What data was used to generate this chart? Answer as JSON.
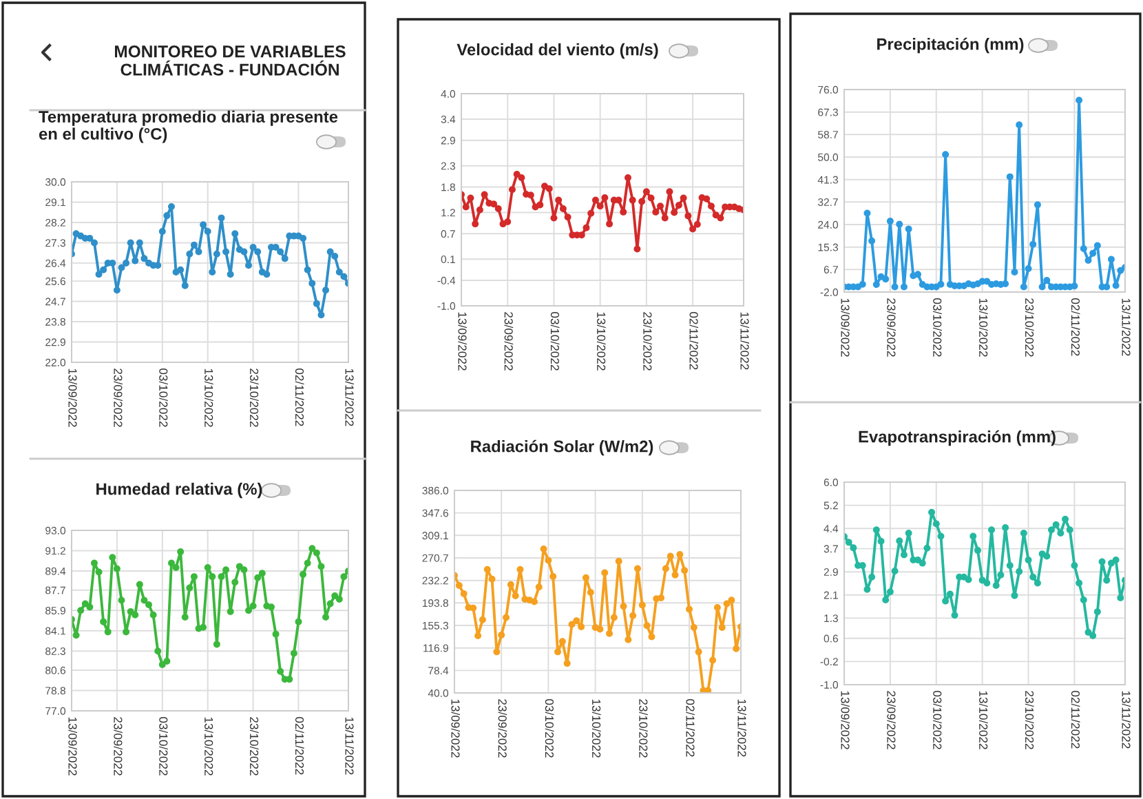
{
  "chart_data": [
    {
      "type": "line",
      "title": "Temperatura promedio diaria presente\nen el cultivo (°C)",
      "annotations": [
        "MONITOREO DE VARIABLES\nCLIMÁTICAS - FUNDACIÓN"
      ],
      "grid": true,
      "marker": "circle",
      "line_style": "solid",
      "x": [
        "2022-09-13",
        "2022-09-14",
        "2022-09-15",
        "2022-09-16",
        "2022-09-17",
        "2022-09-18",
        "2022-09-19",
        "2022-09-20",
        "2022-09-21",
        "2022-09-22",
        "2022-09-23",
        "2022-09-24",
        "2022-09-25",
        "2022-09-26",
        "2022-09-27",
        "2022-09-28",
        "2022-09-29",
        "2022-09-30",
        "2022-10-01",
        "2022-10-02",
        "2022-10-03",
        "2022-10-04",
        "2022-10-05",
        "2022-10-06",
        "2022-10-07",
        "2022-10-08",
        "2022-10-09",
        "2022-10-10",
        "2022-10-11",
        "2022-10-12",
        "2022-10-13",
        "2022-10-14",
        "2022-10-15",
        "2022-10-16",
        "2022-10-17",
        "2022-10-18",
        "2022-10-19",
        "2022-10-20",
        "2022-10-21",
        "2022-10-22",
        "2022-10-23",
        "2022-10-24",
        "2022-10-25",
        "2022-10-26",
        "2022-10-27",
        "2022-10-28",
        "2022-10-29",
        "2022-10-30",
        "2022-10-31",
        "2022-11-01",
        "2022-11-02",
        "2022-11-03",
        "2022-11-04",
        "2022-11-05",
        "2022-11-06",
        "2022-11-07",
        "2022-11-08",
        "2022-11-09",
        "2022-11-10",
        "2022-11-11",
        "2022-11-12",
        "2022-11-13"
      ],
      "series": [
        {
          "color": "#2f8fc9",
          "values": [
            26.8,
            27.7,
            27.6,
            27.5,
            27.5,
            27.3,
            25.9,
            26.1,
            26.4,
            26.4,
            25.2,
            26.2,
            26.4,
            27.3,
            26.5,
            27.3,
            26.6,
            26.4,
            26.3,
            26.3,
            27.8,
            28.5,
            28.9,
            26.0,
            26.1,
            25.4,
            26.8,
            27.2,
            26.9,
            28.1,
            27.8,
            26.0,
            26.8,
            28.4,
            26.9,
            25.9,
            27.7,
            27.0,
            26.9,
            26.3,
            27.1,
            26.9,
            26.0,
            25.9,
            27.1,
            27.1,
            26.9,
            26.6,
            27.6,
            27.6,
            27.6,
            27.5,
            26.1,
            25.5,
            24.6,
            24.1,
            25.2,
            26.9,
            26.7,
            26.0,
            25.8,
            25.5
          ]
        }
      ],
      "xlim": [
        "2022-09-13",
        "2022-11-13"
      ],
      "xticks": [
        {
          "value": "2022-09-13",
          "label": "13/09/2022"
        },
        {
          "value": "2022-09-23",
          "label": "23/09/2022"
        },
        {
          "value": "2022-10-03",
          "label": "03/10/2022"
        },
        {
          "value": "2022-10-13",
          "label": "13/10/2022"
        },
        {
          "value": "2022-10-23",
          "label": "23/10/2022"
        },
        {
          "value": "2022-11-02",
          "label": "02/11/2022"
        },
        {
          "value": "2022-11-13",
          "label": "13/11/2022"
        }
      ],
      "ylim": [
        22,
        30
      ],
      "yticks": [
        {
          "value": 22,
          "label": "22.0"
        },
        {
          "value": 22.9,
          "label": "22.9"
        },
        {
          "value": 23.8,
          "label": "23.8"
        },
        {
          "value": 24.7,
          "label": "24.7"
        },
        {
          "value": 25.6,
          "label": "25.6"
        },
        {
          "value": 26.4,
          "label": "26.4"
        },
        {
          "value": 27.3,
          "label": "27.3"
        },
        {
          "value": 28.2,
          "label": "28.2"
        },
        {
          "value": 29.1,
          "label": "29.1"
        },
        {
          "value": 30,
          "label": "30.0"
        }
      ]
    },
    {
      "type": "line",
      "title": "Velocidad del viento (m/s)",
      "grid": true,
      "marker": "circle",
      "line_style": "solid",
      "x": [
        "2022-09-13",
        "2022-09-14",
        "2022-09-15",
        "2022-09-16",
        "2022-09-17",
        "2022-09-18",
        "2022-09-19",
        "2022-09-20",
        "2022-09-21",
        "2022-09-22",
        "2022-09-23",
        "2022-09-24",
        "2022-09-25",
        "2022-09-26",
        "2022-09-27",
        "2022-09-28",
        "2022-09-29",
        "2022-09-30",
        "2022-10-01",
        "2022-10-02",
        "2022-10-03",
        "2022-10-04",
        "2022-10-05",
        "2022-10-06",
        "2022-10-07",
        "2022-10-08",
        "2022-10-09",
        "2022-10-10",
        "2022-10-11",
        "2022-10-12",
        "2022-10-13",
        "2022-10-14",
        "2022-10-15",
        "2022-10-16",
        "2022-10-17",
        "2022-10-18",
        "2022-10-19",
        "2022-10-20",
        "2022-10-21",
        "2022-10-22",
        "2022-10-23",
        "2022-10-24",
        "2022-10-25",
        "2022-10-26",
        "2022-10-27",
        "2022-10-28",
        "2022-10-29",
        "2022-10-30",
        "2022-10-31",
        "2022-11-01",
        "2022-11-02",
        "2022-11-03",
        "2022-11-04",
        "2022-11-05",
        "2022-11-06",
        "2022-11-07",
        "2022-11-08",
        "2022-11-09",
        "2022-11-10",
        "2022-11-11",
        "2022-11-12",
        "2022-11-13"
      ],
      "series": [
        {
          "color": "#d42a2a",
          "values": [
            1.62,
            1.33,
            1.54,
            0.93,
            1.26,
            1.62,
            1.42,
            1.4,
            1.29,
            0.93,
            0.98,
            1.74,
            2.1,
            2.02,
            1.63,
            1.61,
            1.33,
            1.38,
            1.82,
            1.76,
            1.07,
            1.49,
            1.29,
            1.09,
            0.67,
            0.67,
            0.67,
            0.84,
            1.18,
            1.49,
            1.35,
            1.55,
            0.93,
            1.49,
            1.49,
            1.21,
            2.02,
            1.49,
            0.34,
            1.46,
            1.69,
            1.54,
            1.21,
            1.35,
            1.07,
            1.69,
            1.2,
            1.37,
            1.54,
            1.12,
            0.81,
            0.92,
            1.55,
            1.52,
            1.35,
            1.14,
            1.07,
            1.33,
            1.33,
            1.33,
            1.29,
            1.26
          ]
        }
      ],
      "xlim": [
        "2022-09-13",
        "2022-11-13"
      ],
      "xticks": [
        {
          "value": "2022-09-13",
          "label": "13/09/2022"
        },
        {
          "value": "2022-09-23",
          "label": "23/09/2022"
        },
        {
          "value": "2022-10-03",
          "label": "03/10/2022"
        },
        {
          "value": "2022-10-13",
          "label": "13/10/2022"
        },
        {
          "value": "2022-10-23",
          "label": "23/10/2022"
        },
        {
          "value": "2022-11-02",
          "label": "02/11/2022"
        },
        {
          "value": "2022-11-13",
          "label": "13/11/2022"
        }
      ],
      "ylim": [
        -1,
        4
      ],
      "yticks": [
        {
          "value": -1,
          "label": "-1.0"
        },
        {
          "value": -0.4,
          "label": "-0.4"
        },
        {
          "value": 0.1,
          "label": "0.1"
        },
        {
          "value": 0.7,
          "label": "0.7"
        },
        {
          "value": 1.2,
          "label": "1.2"
        },
        {
          "value": 1.8,
          "label": "1.8"
        },
        {
          "value": 2.3,
          "label": "2.3"
        },
        {
          "value": 2.9,
          "label": "2.9"
        },
        {
          "value": 3.4,
          "label": "3.4"
        },
        {
          "value": 4,
          "label": "4.0"
        }
      ]
    },
    {
      "type": "line",
      "title": "Precipitación (mm)",
      "grid": true,
      "marker": "circle",
      "line_style": "solid",
      "x": [
        "2022-09-13",
        "2022-09-14",
        "2022-09-15",
        "2022-09-16",
        "2022-09-17",
        "2022-09-18",
        "2022-09-19",
        "2022-09-20",
        "2022-09-21",
        "2022-09-22",
        "2022-09-23",
        "2022-09-24",
        "2022-09-25",
        "2022-09-26",
        "2022-09-27",
        "2022-09-28",
        "2022-09-29",
        "2022-09-30",
        "2022-10-01",
        "2022-10-02",
        "2022-10-03",
        "2022-10-04",
        "2022-10-05",
        "2022-10-06",
        "2022-10-07",
        "2022-10-08",
        "2022-10-09",
        "2022-10-10",
        "2022-10-11",
        "2022-10-12",
        "2022-10-13",
        "2022-10-14",
        "2022-10-15",
        "2022-10-16",
        "2022-10-17",
        "2022-10-18",
        "2022-10-19",
        "2022-10-20",
        "2022-10-21",
        "2022-10-22",
        "2022-10-23",
        "2022-10-24",
        "2022-10-25",
        "2022-10-26",
        "2022-10-27",
        "2022-10-28",
        "2022-10-29",
        "2022-10-30",
        "2022-10-31",
        "2022-11-01",
        "2022-11-02",
        "2022-11-03",
        "2022-11-04",
        "2022-11-05",
        "2022-11-06",
        "2022-11-07",
        "2022-11-08",
        "2022-11-09",
        "2022-11-10",
        "2022-11-11",
        "2022-11-12",
        "2022-11-13"
      ],
      "series": [
        {
          "color": "#2d9be0",
          "values": [
            0,
            0,
            0,
            0,
            1,
            28.4,
            17.7,
            0.9,
            3.9,
            3.0,
            25.3,
            0,
            24.1,
            0,
            22.3,
            4.3,
            4.8,
            0.9,
            0,
            0,
            0,
            1,
            51,
            0.9,
            0.4,
            0.4,
            0.4,
            1.2,
            0.7,
            1.2,
            2.1,
            2.1,
            0.9,
            1.2,
            0.9,
            1.2,
            42.4,
            5.7,
            62.4,
            0,
            7,
            16.4,
            31.6,
            0,
            2.5,
            0,
            0,
            0,
            0,
            0,
            0.3,
            71.9,
            14.7,
            10.2,
            12.9,
            15.9,
            0,
            0,
            10.6,
            0.5,
            6.3,
            7.5
          ]
        }
      ],
      "xlim": [
        "2022-09-13",
        "2022-11-13"
      ],
      "xticks": [
        {
          "value": "2022-09-13",
          "label": "13/09/2022"
        },
        {
          "value": "2022-09-23",
          "label": "23/09/2022"
        },
        {
          "value": "2022-10-03",
          "label": "03/10/2022"
        },
        {
          "value": "2022-10-13",
          "label": "13/10/2022"
        },
        {
          "value": "2022-10-23",
          "label": "23/10/2022"
        },
        {
          "value": "2022-11-02",
          "label": "02/11/2022"
        },
        {
          "value": "2022-11-13",
          "label": "13/11/2022"
        }
      ],
      "ylim": [
        -2,
        76
      ],
      "yticks": [
        {
          "value": -2,
          "label": "-2.0"
        },
        {
          "value": 6.7,
          "label": "6.7"
        },
        {
          "value": 15.3,
          "label": "15.3"
        },
        {
          "value": 24,
          "label": "24.0"
        },
        {
          "value": 32.7,
          "label": "32.7"
        },
        {
          "value": 41.3,
          "label": "41.3"
        },
        {
          "value": 50,
          "label": "50.0"
        },
        {
          "value": 58.7,
          "label": "58.7"
        },
        {
          "value": 67.3,
          "label": "67.3"
        },
        {
          "value": 76,
          "label": "76.0"
        }
      ]
    },
    {
      "type": "line",
      "title": "Humedad relativa (%)",
      "grid": true,
      "marker": "circle",
      "line_style": "solid",
      "x": [
        "2022-09-13",
        "2022-09-14",
        "2022-09-15",
        "2022-09-16",
        "2022-09-17",
        "2022-09-18",
        "2022-09-19",
        "2022-09-20",
        "2022-09-21",
        "2022-09-22",
        "2022-09-23",
        "2022-09-24",
        "2022-09-25",
        "2022-09-26",
        "2022-09-27",
        "2022-09-28",
        "2022-09-29",
        "2022-09-30",
        "2022-10-01",
        "2022-10-02",
        "2022-10-03",
        "2022-10-04",
        "2022-10-05",
        "2022-10-06",
        "2022-10-07",
        "2022-10-08",
        "2022-10-09",
        "2022-10-10",
        "2022-10-11",
        "2022-10-12",
        "2022-10-13",
        "2022-10-14",
        "2022-10-15",
        "2022-10-16",
        "2022-10-17",
        "2022-10-18",
        "2022-10-19",
        "2022-10-20",
        "2022-10-21",
        "2022-10-22",
        "2022-10-23",
        "2022-10-24",
        "2022-10-25",
        "2022-10-26",
        "2022-10-27",
        "2022-10-28",
        "2022-10-29",
        "2022-10-30",
        "2022-10-31",
        "2022-11-01",
        "2022-11-02",
        "2022-11-03",
        "2022-11-04",
        "2022-11-05",
        "2022-11-06",
        "2022-11-07",
        "2022-11-08",
        "2022-11-09",
        "2022-11-10",
        "2022-11-11",
        "2022-11-12",
        "2022-11-13"
      ],
      "series": [
        {
          "color": "#3cb83c",
          "values": [
            85.1,
            83.7,
            85.9,
            86.5,
            86.2,
            90.1,
            89.3,
            84.9,
            84.0,
            90.6,
            89.6,
            86.8,
            84.0,
            85.8,
            85.5,
            88.2,
            86.8,
            86.4,
            85.5,
            82.3,
            81.1,
            81.4,
            90.1,
            89.7,
            91.1,
            85.3,
            87.9,
            88.9,
            84.3,
            84.4,
            89.7,
            88.9,
            82.9,
            88.9,
            89.5,
            85.8,
            88.4,
            89.8,
            89.5,
            85.9,
            86.3,
            88.8,
            89.2,
            86.3,
            86.2,
            83.8,
            80.5,
            79.8,
            79.8,
            82.1,
            84.9,
            89.1,
            90.1,
            91.4,
            91.0,
            89.8,
            85.3,
            86.5,
            87.2,
            86.9,
            88.9,
            89.4
          ]
        }
      ],
      "xlim": [
        "2022-09-13",
        "2022-11-13"
      ],
      "xticks": [
        {
          "value": "2022-09-13",
          "label": "13/09/2022"
        },
        {
          "value": "2022-09-23",
          "label": "23/09/2022"
        },
        {
          "value": "2022-10-03",
          "label": "03/10/2022"
        },
        {
          "value": "2022-10-13",
          "label": "13/10/2022"
        },
        {
          "value": "2022-10-23",
          "label": "23/10/2022"
        },
        {
          "value": "2022-11-02",
          "label": "02/11/2022"
        },
        {
          "value": "2022-11-13",
          "label": "13/11/2022"
        }
      ],
      "ylim": [
        77,
        93
      ],
      "yticks": [
        {
          "value": 77,
          "label": "77.0"
        },
        {
          "value": 78.8,
          "label": "78.8"
        },
        {
          "value": 80.6,
          "label": "80.6"
        },
        {
          "value": 82.3,
          "label": "82.3"
        },
        {
          "value": 84.1,
          "label": "84.1"
        },
        {
          "value": 85.9,
          "label": "85.9"
        },
        {
          "value": 87.7,
          "label": "87.7"
        },
        {
          "value": 89.4,
          "label": "89.4"
        },
        {
          "value": 91.2,
          "label": "91.2"
        },
        {
          "value": 93,
          "label": "93.0"
        }
      ]
    },
    {
      "type": "line",
      "title": "Radiación Solar (W/m2)",
      "grid": true,
      "marker": "circle",
      "line_style": "solid",
      "x": [
        "2022-09-13",
        "2022-09-14",
        "2022-09-15",
        "2022-09-16",
        "2022-09-17",
        "2022-09-18",
        "2022-09-19",
        "2022-09-20",
        "2022-09-21",
        "2022-09-22",
        "2022-09-23",
        "2022-09-24",
        "2022-09-25",
        "2022-09-26",
        "2022-09-27",
        "2022-09-28",
        "2022-09-29",
        "2022-09-30",
        "2022-10-01",
        "2022-10-02",
        "2022-10-03",
        "2022-10-04",
        "2022-10-05",
        "2022-10-06",
        "2022-10-07",
        "2022-10-08",
        "2022-10-09",
        "2022-10-10",
        "2022-10-11",
        "2022-10-12",
        "2022-10-13",
        "2022-10-14",
        "2022-10-15",
        "2022-10-16",
        "2022-10-17",
        "2022-10-18",
        "2022-10-19",
        "2022-10-20",
        "2022-10-21",
        "2022-10-22",
        "2022-10-23",
        "2022-10-24",
        "2022-10-25",
        "2022-10-26",
        "2022-10-27",
        "2022-10-28",
        "2022-10-29",
        "2022-10-30",
        "2022-10-31",
        "2022-11-01",
        "2022-11-02",
        "2022-11-03",
        "2022-11-04",
        "2022-11-05",
        "2022-11-06",
        "2022-11-07",
        "2022-11-08",
        "2022-11-09",
        "2022-11-10",
        "2022-11-11",
        "2022-11-12",
        "2022-11-13"
      ],
      "series": [
        {
          "color": "#f5a020",
          "values": [
            240.7,
            223.5,
            209.4,
            186,
            185,
            137.6,
            165,
            251,
            234.4,
            110.2,
            139,
            168.8,
            225,
            206,
            251,
            200,
            198.5,
            196,
            221,
            286,
            266.5,
            239,
            110.2,
            128,
            90.5,
            157,
            163.4,
            153,
            236.8,
            211.8,
            151.7,
            149,
            245.4,
            141.4,
            168.8,
            265,
            188,
            131,
            172,
            252.4,
            190,
            155,
            136,
            201,
            202.4,
            252.4,
            273.5,
            241.5,
            276.6,
            249.3,
            183,
            151.7,
            110.2,
            44,
            44,
            96,
            186,
            151.7,
            192.3,
            198.5,
            115.6,
            153
          ]
        }
      ],
      "xlim": [
        "2022-09-13",
        "2022-11-13"
      ],
      "xticks": [
        {
          "value": "2022-09-13",
          "label": "13/09/2022"
        },
        {
          "value": "2022-09-23",
          "label": "23/09/2022"
        },
        {
          "value": "2022-10-03",
          "label": "03/10/2022"
        },
        {
          "value": "2022-10-13",
          "label": "13/10/2022"
        },
        {
          "value": "2022-10-23",
          "label": "23/10/2022"
        },
        {
          "value": "2022-11-02",
          "label": "02/11/2022"
        },
        {
          "value": "2022-11-13",
          "label": "13/11/2022"
        }
      ],
      "ylim": [
        40,
        386
      ],
      "yticks": [
        {
          "value": 40,
          "label": "40.0"
        },
        {
          "value": 78.4,
          "label": "78.4"
        },
        {
          "value": 116.9,
          "label": "116.9"
        },
        {
          "value": 155.3,
          "label": "155.3"
        },
        {
          "value": 193.8,
          "label": "193.8"
        },
        {
          "value": 232.2,
          "label": "232.2"
        },
        {
          "value": 270.7,
          "label": "270.7"
        },
        {
          "value": 309.1,
          "label": "309.1"
        },
        {
          "value": 347.6,
          "label": "347.6"
        },
        {
          "value": 386,
          "label": "386.0"
        }
      ]
    },
    {
      "type": "line",
      "title": "Evapotranspiración (mm)",
      "grid": true,
      "marker": "circle",
      "line_style": "solid",
      "x": [
        "2022-09-13",
        "2022-09-14",
        "2022-09-15",
        "2022-09-16",
        "2022-09-17",
        "2022-09-18",
        "2022-09-19",
        "2022-09-20",
        "2022-09-21",
        "2022-09-22",
        "2022-09-23",
        "2022-09-24",
        "2022-09-25",
        "2022-09-26",
        "2022-09-27",
        "2022-09-28",
        "2022-09-29",
        "2022-09-30",
        "2022-10-01",
        "2022-10-02",
        "2022-10-03",
        "2022-10-04",
        "2022-10-05",
        "2022-10-06",
        "2022-10-07",
        "2022-10-08",
        "2022-10-09",
        "2022-10-10",
        "2022-10-11",
        "2022-10-12",
        "2022-10-13",
        "2022-10-14",
        "2022-10-15",
        "2022-10-16",
        "2022-10-17",
        "2022-10-18",
        "2022-10-19",
        "2022-10-20",
        "2022-10-21",
        "2022-10-22",
        "2022-10-23",
        "2022-10-24",
        "2022-10-25",
        "2022-10-26",
        "2022-10-27",
        "2022-10-28",
        "2022-10-29",
        "2022-10-30",
        "2022-10-31",
        "2022-11-01",
        "2022-11-02",
        "2022-11-03",
        "2022-11-04",
        "2022-11-05",
        "2022-11-06",
        "2022-11-07",
        "2022-11-08",
        "2022-11-09",
        "2022-11-10",
        "2022-11-11",
        "2022-11-12",
        "2022-11-13"
      ],
      "series": [
        {
          "color": "#25b8a0",
          "values": [
            4.12,
            3.92,
            3.73,
            3.12,
            3.12,
            2.29,
            2.72,
            4.35,
            3.96,
            1.93,
            2.21,
            2.93,
            3.97,
            3.49,
            4.24,
            3.31,
            3.31,
            3.2,
            3.72,
            4.96,
            4.56,
            4.13,
            1.89,
            2.13,
            1.4,
            2.72,
            2.72,
            2.63,
            4.13,
            3.64,
            2.61,
            2.51,
            4.35,
            2.43,
            2.79,
            4.43,
            3.12,
            2.08,
            2.91,
            4.24,
            3.31,
            2.72,
            2.51,
            3.52,
            3.44,
            4.35,
            4.53,
            4.24,
            4.72,
            4.35,
            3.12,
            2.51,
            1.93,
            0.81,
            0.69,
            1.52,
            3.25,
            2.61,
            3.2,
            3.31,
            2.0,
            2.61
          ]
        }
      ],
      "xlim": [
        "2022-09-13",
        "2022-11-13"
      ],
      "xticks": [
        {
          "value": "2022-09-13",
          "label": "13/09/2022"
        },
        {
          "value": "2022-09-23",
          "label": "23/09/2022"
        },
        {
          "value": "2022-10-03",
          "label": "03/10/2022"
        },
        {
          "value": "2022-10-13",
          "label": "13/10/2022"
        },
        {
          "value": "2022-10-23",
          "label": "23/10/2022"
        },
        {
          "value": "2022-11-02",
          "label": "02/11/2022"
        },
        {
          "value": "2022-11-13",
          "label": "13/11/2022"
        }
      ],
      "ylim": [
        -1,
        6
      ],
      "yticks": [
        {
          "value": -1,
          "label": "-1.0"
        },
        {
          "value": -0.2,
          "label": "-0.2"
        },
        {
          "value": 0.6,
          "label": "0.6"
        },
        {
          "value": 1.3,
          "label": "1.3"
        },
        {
          "value": 2.1,
          "label": "2.1"
        },
        {
          "value": 2.9,
          "label": "2.9"
        },
        {
          "value": 3.7,
          "label": "3.7"
        },
        {
          "value": 4.4,
          "label": "4.4"
        },
        {
          "value": 5.2,
          "label": "5.2"
        },
        {
          "value": 6,
          "label": "6.0"
        }
      ]
    }
  ]
}
